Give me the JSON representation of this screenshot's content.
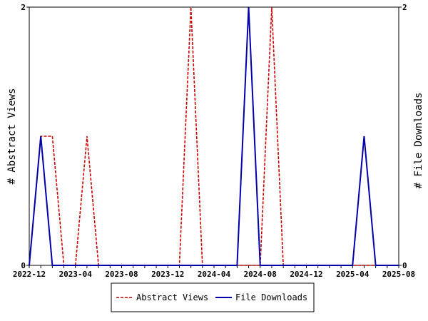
{
  "chart_data": {
    "type": "line",
    "x": [
      "2022-12",
      "2023-01",
      "2023-02",
      "2023-03",
      "2023-04",
      "2023-05",
      "2023-06",
      "2023-07",
      "2023-08",
      "2023-09",
      "2023-10",
      "2023-11",
      "2023-12",
      "2024-01",
      "2024-02",
      "2024-03",
      "2024-04",
      "2024-05",
      "2024-06",
      "2024-07",
      "2024-08",
      "2024-09",
      "2024-10",
      "2024-11",
      "2024-12",
      "2025-01",
      "2025-02",
      "2025-03",
      "2025-04",
      "2025-05",
      "2025-06",
      "2025-07",
      "2025-08"
    ],
    "x_tick_labels": [
      "2022-12",
      "2023-04",
      "2023-08",
      "2023-12",
      "2024-04",
      "2024-08",
      "2024-12",
      "2025-04",
      "2025-08"
    ],
    "series": [
      {
        "name": "Abstract Views",
        "axis": "left",
        "color": "#cc0000",
        "style": "dashed",
        "values": [
          0,
          1,
          1,
          0,
          0,
          1,
          0,
          0,
          0,
          0,
          0,
          0,
          0,
          0,
          2,
          0,
          0,
          0,
          0,
          0,
          0,
          2,
          0,
          0,
          0,
          0,
          0,
          0,
          0,
          0,
          0,
          0,
          0
        ]
      },
      {
        "name": "File Downloads",
        "axis": "right",
        "color": "#0000aa",
        "style": "solid",
        "values": [
          0,
          1,
          0,
          0,
          0,
          0,
          0,
          0,
          0,
          0,
          0,
          0,
          0,
          0,
          0,
          0,
          0,
          0,
          0,
          2,
          0,
          0,
          0,
          0,
          0,
          0,
          0,
          0,
          0,
          1,
          0,
          0,
          0
        ]
      }
    ],
    "ylabel": "# Abstract Views",
    "ylabel_right": "# File Downloads",
    "ylim": [
      0,
      2
    ],
    "y_ticks": [
      "0",
      "2"
    ],
    "y_ticks_right": [
      "0",
      "2"
    ],
    "grid": false,
    "legend_position": "bottom"
  }
}
